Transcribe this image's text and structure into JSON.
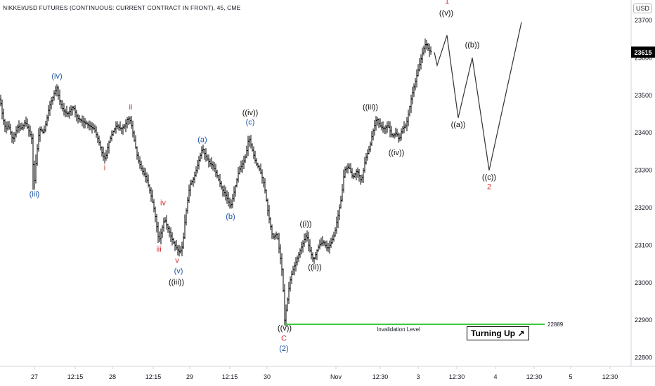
{
  "header": {
    "title": "NIKKEI/USD FUTURES (CONTINUOUS: CURRENT CONTRACT IN FRONT), 45, CME",
    "currency": "USD"
  },
  "badge": {
    "label": "Turning Up",
    "arrow": "↗"
  },
  "colors": {
    "bar": "#000000",
    "blue_label": "#1e56a8",
    "red_label": "#d32f2f",
    "black_label": "#111111",
    "invalidation_line": "#37c837",
    "price_tag_bg": "#000000",
    "price_tag_text": "#ffffff"
  },
  "chart_data": {
    "type": "ohlc",
    "y_axis": {
      "ticks": [
        22800,
        22900,
        23000,
        23100,
        23200,
        23300,
        23400,
        23500,
        23600,
        23700
      ],
      "range": [
        22770,
        23760
      ],
      "current_price": 23615
    },
    "x_axis": {
      "ticks": [
        "27",
        "12:15",
        "28",
        "12:15",
        "29",
        "12:15",
        "30",
        "Nov",
        "12:30",
        "3",
        "12:30",
        "4",
        "12:30",
        "5",
        "12:30"
      ]
    },
    "price_path": [
      [
        0,
        23490
      ],
      [
        4,
        23440
      ],
      [
        8,
        23410
      ],
      [
        12,
        23420
      ],
      [
        18,
        23380
      ],
      [
        22,
        23400
      ],
      [
        26,
        23420
      ],
      [
        30,
        23410
      ],
      [
        36,
        23430
      ],
      [
        42,
        23400
      ],
      [
        46,
        23380
      ],
      [
        48,
        23250
      ],
      [
        52,
        23340
      ],
      [
        56,
        23410
      ],
      [
        62,
        23400
      ],
      [
        66,
        23430
      ],
      [
        70,
        23470
      ],
      [
        74,
        23490
      ],
      [
        78,
        23510
      ],
      [
        81,
        23520
      ],
      [
        84,
        23490
      ],
      [
        90,
        23460
      ],
      [
        96,
        23450
      ],
      [
        104,
        23470
      ],
      [
        110,
        23440
      ],
      [
        118,
        23430
      ],
      [
        126,
        23420
      ],
      [
        134,
        23410
      ],
      [
        140,
        23380
      ],
      [
        146,
        23340
      ],
      [
        150,
        23330
      ],
      [
        154,
        23370
      ],
      [
        160,
        23400
      ],
      [
        166,
        23420
      ],
      [
        172,
        23410
      ],
      [
        178,
        23420
      ],
      [
        182,
        23440
      ],
      [
        186,
        23430
      ],
      [
        190,
        23390
      ],
      [
        196,
        23330
      ],
      [
        202,
        23300
      ],
      [
        208,
        23280
      ],
      [
        214,
        23240
      ],
      [
        220,
        23190
      ],
      [
        226,
        23110
      ],
      [
        230,
        23140
      ],
      [
        234,
        23170
      ],
      [
        238,
        23150
      ],
      [
        242,
        23130
      ],
      [
        246,
        23110
      ],
      [
        252,
        23090
      ],
      [
        256,
        23080
      ],
      [
        260,
        23100
      ],
      [
        264,
        23180
      ],
      [
        270,
        23260
      ],
      [
        276,
        23280
      ],
      [
        282,
        23320
      ],
      [
        288,
        23360
      ],
      [
        292,
        23340
      ],
      [
        298,
        23320
      ],
      [
        304,
        23310
      ],
      [
        310,
        23280
      ],
      [
        316,
        23250
      ],
      [
        322,
        23230
      ],
      [
        328,
        23200
      ],
      [
        334,
        23250
      ],
      [
        340,
        23300
      ],
      [
        346,
        23320
      ],
      [
        350,
        23340
      ],
      [
        354,
        23390
      ],
      [
        358,
        23360
      ],
      [
        364,
        23320
      ],
      [
        370,
        23300
      ],
      [
        376,
        23260
      ],
      [
        382,
        23180
      ],
      [
        388,
        23120
      ],
      [
        394,
        23130
      ],
      [
        398,
        23080
      ],
      [
        402,
        23020
      ],
      [
        405,
        22900
      ],
      [
        408,
        22940
      ],
      [
        412,
        23000
      ],
      [
        416,
        23030
      ],
      [
        420,
        23050
      ],
      [
        426,
        23080
      ],
      [
        432,
        23110
      ],
      [
        436,
        23130
      ],
      [
        440,
        23090
      ],
      [
        446,
        23060
      ],
      [
        450,
        23080
      ],
      [
        454,
        23100
      ],
      [
        460,
        23110
      ],
      [
        466,
        23090
      ],
      [
        472,
        23110
      ],
      [
        476,
        23130
      ],
      [
        480,
        23170
      ],
      [
        486,
        23230
      ],
      [
        490,
        23300
      ],
      [
        496,
        23310
      ],
      [
        502,
        23280
      ],
      [
        508,
        23300
      ],
      [
        514,
        23270
      ],
      [
        520,
        23330
      ],
      [
        526,
        23360
      ],
      [
        530,
        23400
      ],
      [
        536,
        23440
      ],
      [
        540,
        23420
      ],
      [
        546,
        23410
      ],
      [
        552,
        23420
      ],
      [
        558,
        23390
      ],
      [
        564,
        23400
      ],
      [
        568,
        23380
      ],
      [
        572,
        23410
      ],
      [
        578,
        23420
      ],
      [
        582,
        23460
      ],
      [
        586,
        23500
      ],
      [
        590,
        23530
      ],
      [
        594,
        23560
      ],
      [
        598,
        23590
      ],
      [
        602,
        23620
      ],
      [
        606,
        23640
      ],
      [
        610,
        23620
      ],
      [
        614,
        23615
      ]
    ],
    "projection": [
      [
        618,
        23615
      ],
      [
        622,
        23580
      ],
      [
        636,
        23660
      ],
      [
        652,
        23440
      ],
      [
        672,
        23600
      ],
      [
        696,
        23300
      ],
      [
        742,
        23695
      ]
    ],
    "invalidation": {
      "label": "Invalidation Level",
      "value": 22889
    },
    "wave_labels": [
      {
        "text": "1",
        "x": 636,
        "price": 23745,
        "color": "red"
      },
      {
        "text": "((v))",
        "x": 635,
        "price": 23713,
        "color": "black"
      },
      {
        "text": "((b))",
        "x": 672,
        "price": 23628,
        "color": "black"
      },
      {
        "text": "((a))",
        "x": 652,
        "price": 23415,
        "color": "black"
      },
      {
        "text": "((c))",
        "x": 696,
        "price": 23275,
        "color": "black"
      },
      {
        "text": "2",
        "x": 696,
        "price": 23250,
        "color": "red"
      },
      {
        "text": "(iv)",
        "x": 81,
        "price": 23545,
        "color": "blue"
      },
      {
        "text": "(iii)",
        "x": 49,
        "price": 23230,
        "color": "blue"
      },
      {
        "text": "ii",
        "x": 186,
        "price": 23462,
        "color": "red"
      },
      {
        "text": "i",
        "x": 149,
        "price": 23300,
        "color": "red"
      },
      {
        "text": "iv",
        "x": 232,
        "price": 23207,
        "color": "red"
      },
      {
        "text": "iii",
        "x": 226,
        "price": 23083,
        "color": "red"
      },
      {
        "text": "v",
        "x": 252,
        "price": 23053,
        "color": "red"
      },
      {
        "text": "(v)",
        "x": 254,
        "price": 23025,
        "color": "blue"
      },
      {
        "text": "((iii))",
        "x": 251,
        "price": 22995,
        "color": "black"
      },
      {
        "text": "(a)",
        "x": 288,
        "price": 23375,
        "color": "blue"
      },
      {
        "text": "(b)",
        "x": 328,
        "price": 23170,
        "color": "blue"
      },
      {
        "text": "((iv))",
        "x": 356,
        "price": 23447,
        "color": "black"
      },
      {
        "text": "(c)",
        "x": 356,
        "price": 23422,
        "color": "blue"
      },
      {
        "text": "((i))",
        "x": 435,
        "price": 23150,
        "color": "black"
      },
      {
        "text": "((ii))",
        "x": 448,
        "price": 23035,
        "color": "black"
      },
      {
        "text": "((iii))",
        "x": 527,
        "price": 23462,
        "color": "black"
      },
      {
        "text": "((iv))",
        "x": 564,
        "price": 23340,
        "color": "black"
      },
      {
        "text": "((v))",
        "x": 405,
        "price": 22872,
        "color": "black"
      },
      {
        "text": "C",
        "x": 404,
        "price": 22845,
        "color": "red"
      },
      {
        "text": "(2)",
        "x": 404,
        "price": 22818,
        "color": "blue"
      }
    ]
  }
}
